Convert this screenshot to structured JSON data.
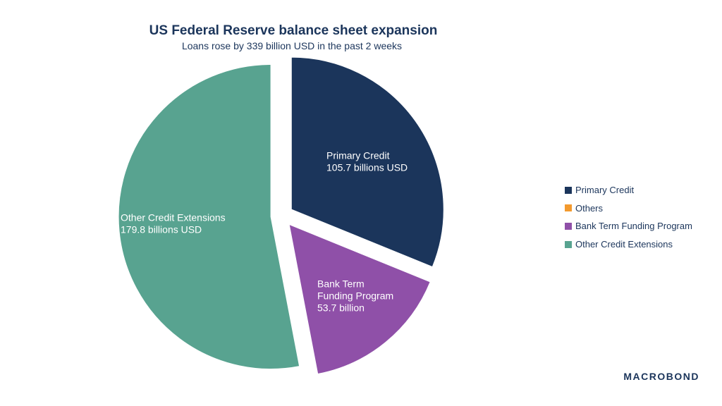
{
  "chart_data": {
    "type": "pie",
    "title": "US Federal Reserve balance sheet expansion",
    "subtitle": "Loans rose by 339 billion USD in the past 2 weeks",
    "slices": [
      {
        "name": "Primary Credit",
        "value": 105.7,
        "color": "#1b355b",
        "label_lines": [
          "Primary Credit",
          "105.7 billions USD"
        ]
      },
      {
        "name": "Others",
        "value": 0,
        "color": "#f39a2e",
        "label_lines": []
      },
      {
        "name": "Bank Term Funding Program",
        "value": 53.7,
        "color": "#8f50a8",
        "label_lines": [
          "Bank Term",
          "Funding Program",
          "53.7 billion"
        ]
      },
      {
        "name": "Other Credit Extensions",
        "value": 179.8,
        "color": "#58a390",
        "label_lines": [
          "Other Credit Extensions",
          "179.8 billions USD"
        ]
      }
    ],
    "legend_position": "right"
  },
  "brand": {
    "logo_text": "MACROBOND"
  }
}
